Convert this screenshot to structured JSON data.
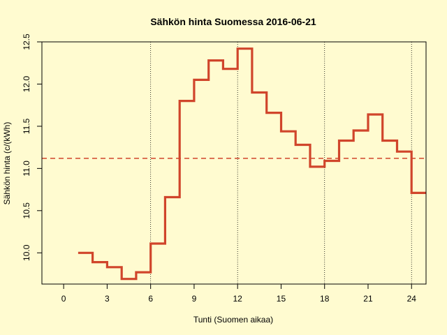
{
  "colors": {
    "background": "#FFFBD0",
    "price_line": "#D0452B",
    "mean_line": "#D0452B",
    "gridline": "#000000"
  },
  "chart_data": {
    "type": "line",
    "step": true,
    "title": "Sähkön hinta Suomessa 2016-06-21",
    "xlabel": "Tunti (Suomen aikaa)",
    "ylabel": "Sähkön hinta (c/(kWh)",
    "xlim": [
      -1.5,
      25
    ],
    "ylim": [
      9.63,
      12.5
    ],
    "x_ticks": [
      0,
      3,
      6,
      9,
      12,
      15,
      18,
      21,
      24
    ],
    "y_ticks": [
      10.0,
      10.5,
      11.0,
      11.5,
      12.0,
      12.5
    ],
    "y_tick_labels": [
      "10.0",
      "10.5",
      "11.0",
      "11.5",
      "12.0",
      "12.5"
    ],
    "vertical_gridlines_x": [
      6,
      12,
      18,
      24
    ],
    "series": [
      {
        "x": [
          1,
          2,
          3,
          4,
          5,
          6,
          7,
          8,
          9,
          10,
          11,
          12,
          13,
          14,
          15,
          16,
          17,
          18,
          19,
          20,
          21,
          22,
          23,
          24,
          25
        ],
        "values": [
          10.0,
          9.89,
          9.83,
          9.69,
          9.77,
          10.11,
          10.66,
          11.8,
          12.05,
          12.28,
          12.18,
          12.42,
          11.9,
          11.66,
          11.44,
          11.28,
          11.02,
          11.09,
          11.33,
          11.45,
          11.64,
          11.33,
          11.2,
          10.71,
          10.71
        ]
      }
    ],
    "mean": 11.12,
    "grid": "dotted vertical lines at 6-hour intervals"
  }
}
